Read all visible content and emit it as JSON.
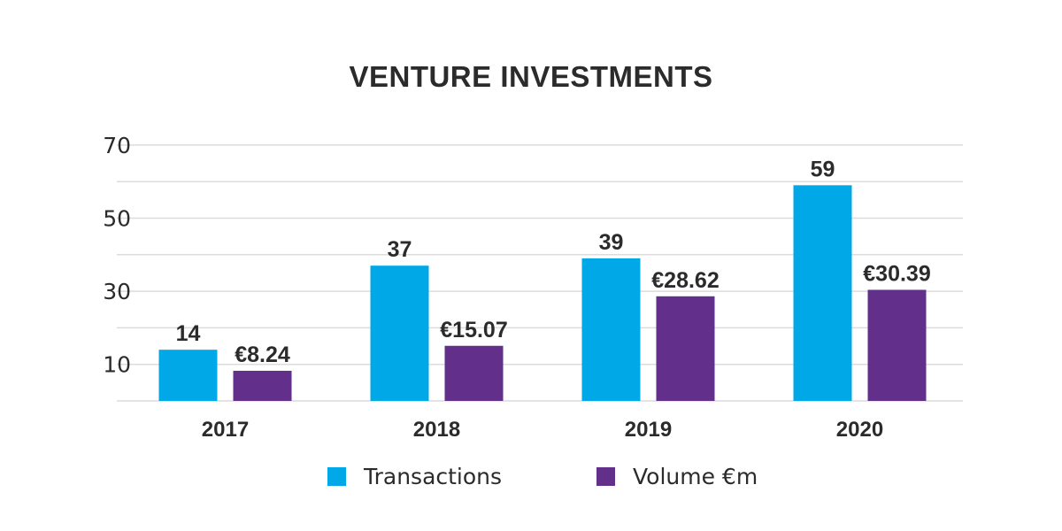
{
  "chart_data": {
    "type": "bar",
    "title": "VENTURE INVESTMENTS",
    "categories": [
      "2017",
      "2018",
      "2019",
      "2020"
    ],
    "series": [
      {
        "name": "Transactions",
        "values": [
          14,
          37,
          39,
          59
        ],
        "labels": [
          "14",
          "37",
          "39",
          "59"
        ],
        "color": "#00a8e8"
      },
      {
        "name": "Volume €m",
        "values": [
          8.24,
          15.07,
          28.62,
          30.39
        ],
        "labels": [
          "€8.24",
          "€15.07",
          "€28.62",
          "€30.39"
        ],
        "color": "#622f8b"
      }
    ],
    "yticks": [
      "10",
      "30",
      "50",
      "70"
    ],
    "ylim": [
      0,
      70
    ],
    "grid": true,
    "legend_position": "bottom"
  }
}
